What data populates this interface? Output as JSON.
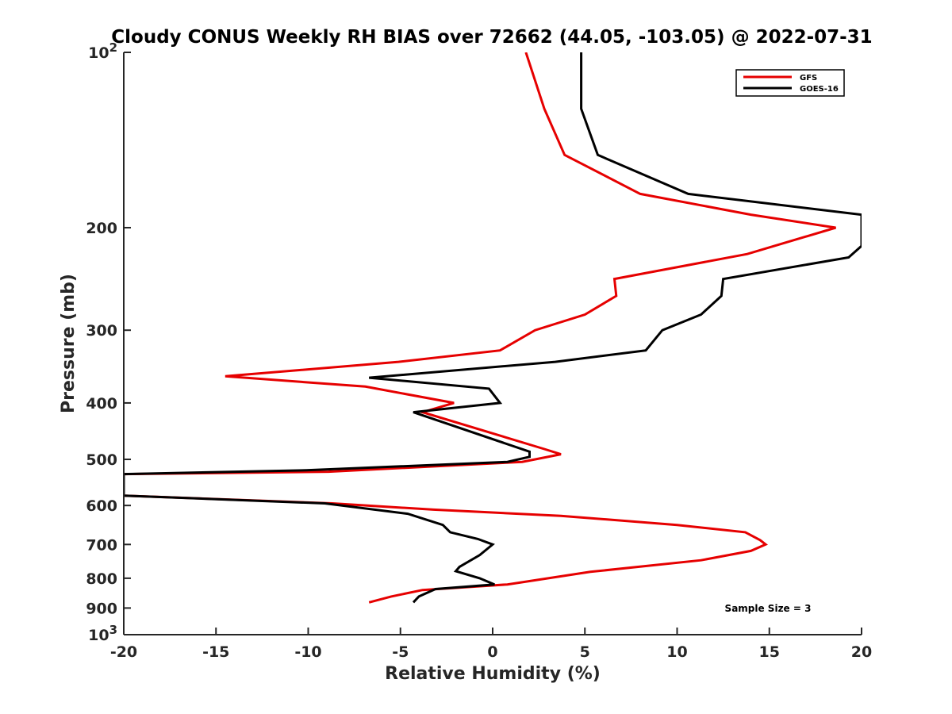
{
  "chart_data": {
    "type": "line",
    "title": "Cloudy CONUS Weekly RH BIAS over 72662 (44.05, -103.05) @ 2022-07-31",
    "xlabel": "Relative Humidity (%)",
    "ylabel": "Pressure (mb)",
    "xlim": [
      -20,
      20
    ],
    "ylim": [
      100,
      1000
    ],
    "y_scale": "log",
    "y_reversed": true,
    "x_ticks": [
      "-20",
      "-15",
      "-10",
      "-5",
      "0",
      "5",
      "10",
      "15",
      "20"
    ],
    "y_ticks": [
      {
        "value": 100,
        "label": "10",
        "sup": "2"
      },
      {
        "value": 200,
        "label": "200",
        "sup": ""
      },
      {
        "value": 300,
        "label": "300",
        "sup": ""
      },
      {
        "value": 400,
        "label": "400",
        "sup": ""
      },
      {
        "value": 500,
        "label": "500",
        "sup": ""
      },
      {
        "value": 600,
        "label": "600",
        "sup": ""
      },
      {
        "value": 700,
        "label": "700",
        "sup": ""
      },
      {
        "value": 800,
        "label": "800",
        "sup": ""
      },
      {
        "value": 900,
        "label": "900",
        "sup": ""
      },
      {
        "value": 1000,
        "label": "10",
        "sup": "3"
      }
    ],
    "grid": false,
    "legend_position": "top-right",
    "annotation": "Sample Size = 3",
    "series": [
      {
        "name": "GFS",
        "color": "#e60000",
        "points": [
          [
            1.8,
            100
          ],
          [
            2.8,
            125
          ],
          [
            3.9,
            150
          ],
          [
            8.0,
            175
          ],
          [
            14.0,
            190
          ],
          [
            18.6,
            200
          ],
          [
            13.8,
            222
          ],
          [
            6.6,
            245
          ],
          [
            6.7,
            262
          ],
          [
            5.0,
            282
          ],
          [
            2.3,
            300
          ],
          [
            0.4,
            325
          ],
          [
            -5.1,
            340
          ],
          [
            -14.5,
            360
          ],
          [
            -6.9,
            375
          ],
          [
            -2.1,
            400
          ],
          [
            -3.8,
            415
          ],
          [
            2.8,
            480
          ],
          [
            3.7,
            490
          ],
          [
            1.6,
            505
          ],
          [
            -8.9,
            525
          ],
          [
            -20.0,
            530
          ],
          [
            -20.0,
            577
          ],
          [
            -8.7,
            595
          ],
          [
            -3.2,
            610
          ],
          [
            3.7,
            625
          ],
          [
            10.0,
            648
          ],
          [
            13.7,
            667
          ],
          [
            14.5,
            688
          ],
          [
            14.8,
            700
          ],
          [
            14.0,
            718
          ],
          [
            11.3,
            745
          ],
          [
            5.3,
            780
          ],
          [
            0.8,
            820
          ],
          [
            -3.8,
            838
          ],
          [
            -5.5,
            860
          ],
          [
            -6.7,
            880
          ]
        ]
      },
      {
        "name": "GOES-16",
        "color": "#000000",
        "points": [
          [
            4.8,
            100
          ],
          [
            4.8,
            125
          ],
          [
            5.7,
            150
          ],
          [
            10.6,
            175
          ],
          [
            20.0,
            190
          ],
          [
            20.0,
            215
          ],
          [
            19.3,
            225
          ],
          [
            12.5,
            245
          ],
          [
            12.4,
            262
          ],
          [
            11.3,
            282
          ],
          [
            9.2,
            300
          ],
          [
            8.3,
            325
          ],
          [
            3.4,
            340
          ],
          [
            -6.7,
            362
          ],
          [
            -0.2,
            378
          ],
          [
            0.4,
            400
          ],
          [
            -4.3,
            415
          ],
          [
            2.0,
            485
          ],
          [
            2.0,
            495
          ],
          [
            0.8,
            505
          ],
          [
            -10.1,
            522
          ],
          [
            -20.0,
            530
          ],
          [
            -20.0,
            577
          ],
          [
            -9.1,
            595
          ],
          [
            -4.6,
            620
          ],
          [
            -2.7,
            648
          ],
          [
            -2.3,
            667
          ],
          [
            -0.8,
            685
          ],
          [
            0.0,
            700
          ],
          [
            -0.7,
            730
          ],
          [
            -1.8,
            765
          ],
          [
            -2.0,
            778
          ],
          [
            -0.7,
            800
          ],
          [
            0.1,
            820
          ],
          [
            -3.1,
            835
          ],
          [
            -4.0,
            860
          ],
          [
            -4.3,
            880
          ]
        ]
      }
    ]
  }
}
